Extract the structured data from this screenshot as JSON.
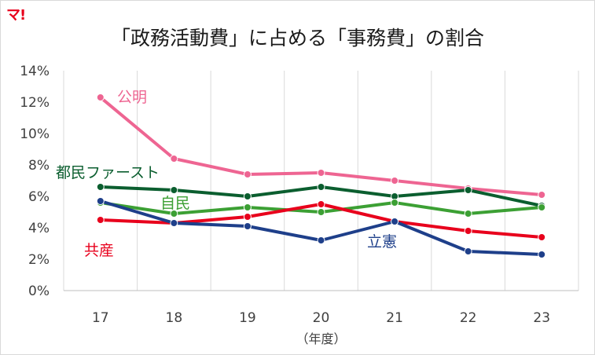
{
  "brand": {
    "logo_text": "マ!",
    "accent": "#e8001c"
  },
  "chart_data": {
    "type": "line",
    "title": "「政務活動費」に占める「事務費」の割合",
    "xlabel": "（年度）",
    "ylabel": "",
    "categories": [
      "17",
      "18",
      "19",
      "20",
      "21",
      "22",
      "23"
    ],
    "ylim": [
      0,
      14
    ],
    "yticks": [
      0,
      2,
      4,
      6,
      8,
      10,
      12,
      14
    ],
    "ytick_suffix": "%",
    "grid": {
      "horizontal": false,
      "vertical": true
    },
    "legend": "inline labels",
    "series": [
      {
        "name": "公明",
        "color": "#ee6592",
        "values": [
          12.3,
          8.4,
          7.4,
          7.5,
          7.0,
          6.5,
          6.1
        ]
      },
      {
        "name": "都民ファースト",
        "color": "#0b5e2f",
        "values": [
          6.6,
          6.4,
          6.0,
          6.6,
          6.0,
          6.4,
          5.4
        ]
      },
      {
        "name": "自民",
        "color": "#3ca034",
        "values": [
          5.6,
          4.9,
          5.3,
          5.0,
          5.6,
          4.9,
          5.3
        ]
      },
      {
        "name": "共産",
        "color": "#e8001c",
        "values": [
          4.5,
          4.3,
          4.7,
          5.5,
          4.4,
          3.8,
          3.4
        ]
      },
      {
        "name": "立憲",
        "color": "#1e3f8a",
        "values": [
          5.7,
          4.3,
          4.1,
          3.2,
          4.4,
          2.5,
          2.3
        ]
      }
    ]
  }
}
